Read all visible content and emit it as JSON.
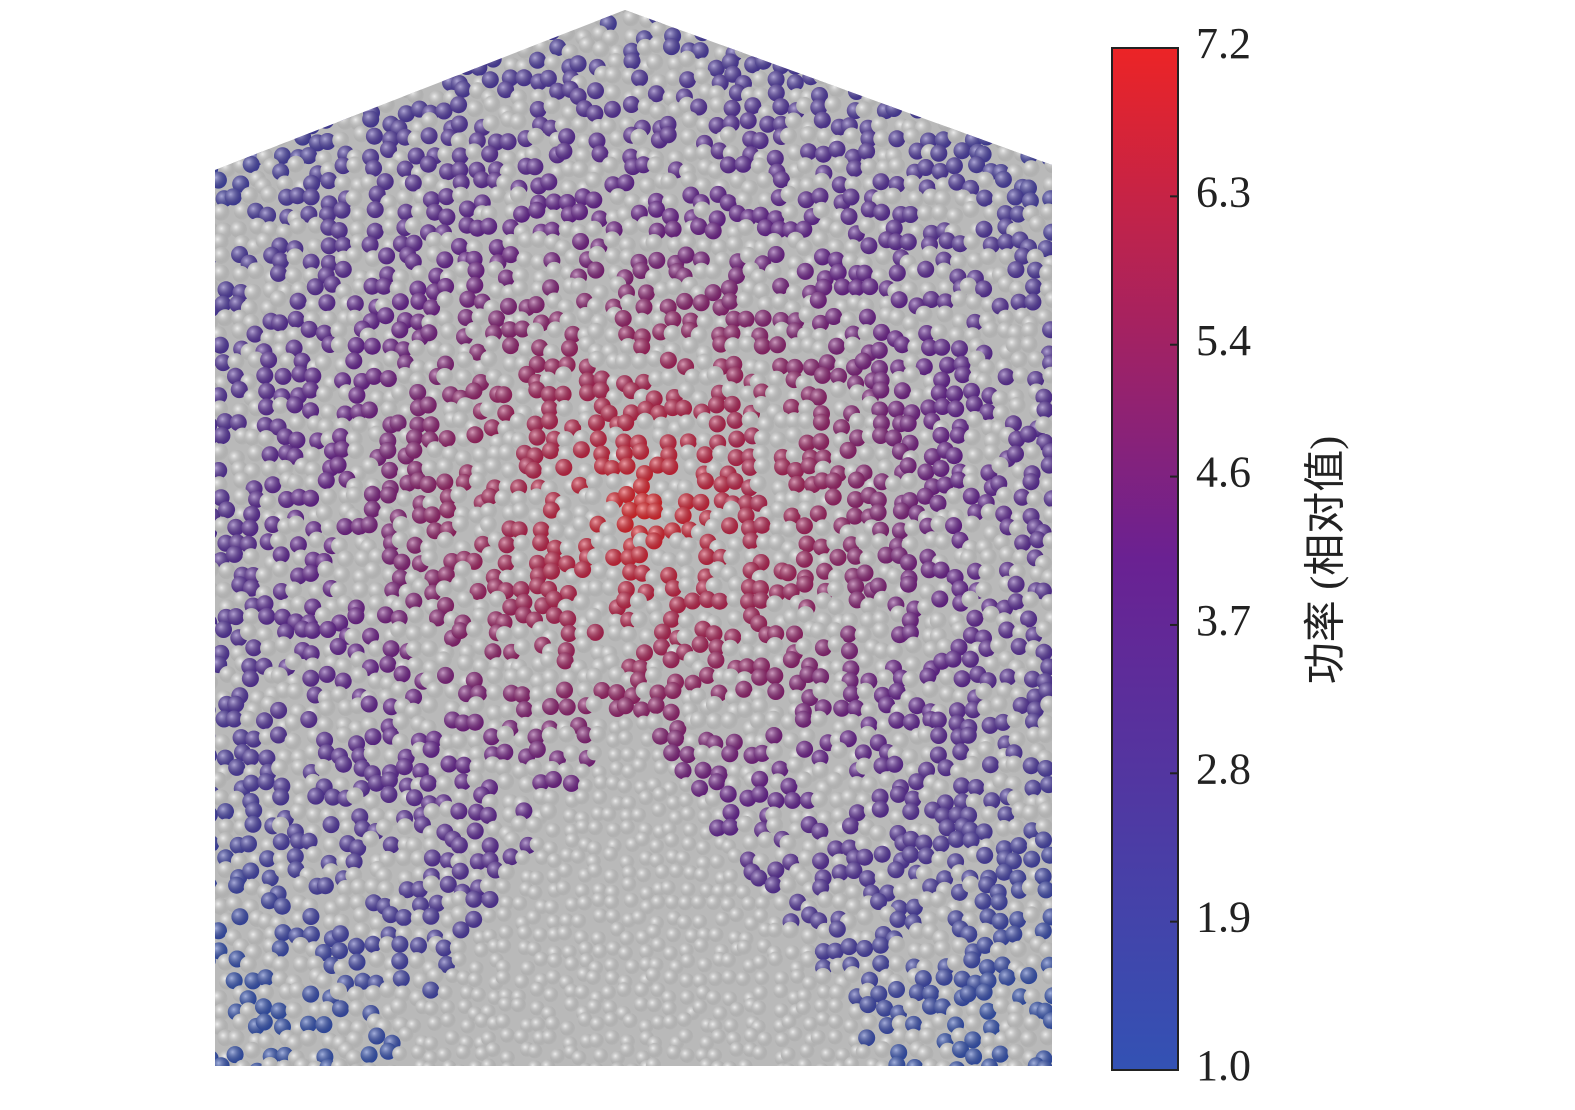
{
  "chart_data": {
    "type": "particles",
    "colorbar_label": "功率 (相对值)",
    "clim": [
      1.0,
      7.2
    ],
    "cticks": [
      {
        "value": 1.0,
        "label": "1.0"
      },
      1.9,
      2.8,
      3.7,
      4.6,
      5.4,
      6.3,
      7.2
    ],
    "colormap": [
      "#3352b4",
      "#6a2192",
      "#ec2426"
    ]
  }
}
